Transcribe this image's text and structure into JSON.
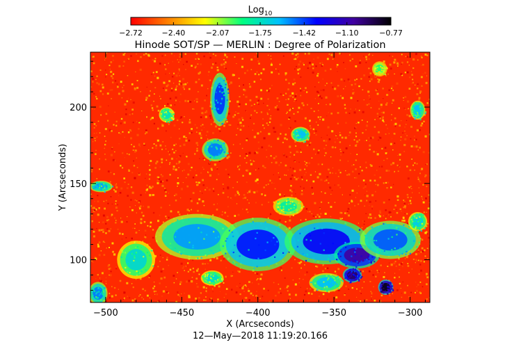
{
  "chart_data": {
    "type": "heatmap",
    "title": "Hinode SOT/SP — MERLIN : Degree of Polarization",
    "xlabel": "X (Arcseconds)",
    "ylabel": "Y (Arcseconds)",
    "xlim": [
      -510,
      -287
    ],
    "ylim": [
      72,
      236
    ],
    "x_ticks": [
      -500,
      -450,
      -400,
      -350,
      -300
    ],
    "x_tick_labels": [
      "−500",
      "−450",
      "−400",
      "−350",
      "−300"
    ],
    "y_ticks": [
      100,
      150,
      200
    ],
    "y_tick_labels": [
      "100",
      "150",
      "200"
    ],
    "colorbar": {
      "label_main": "Log",
      "label_sub": "10",
      "range": [
        -2.72,
        -0.77
      ],
      "tick_values": [
        -2.72,
        -2.4,
        -2.07,
        -1.75,
        -1.42,
        -1.1,
        -0.77
      ],
      "tick_labels": [
        "−2.72",
        "−2.40",
        "−2.07",
        "−1.75",
        "−1.42",
        "−1.10",
        "−0.77"
      ],
      "colors": [
        "#ff0000",
        "#ff8000",
        "#ffff00",
        "#00ff80",
        "#00c0ff",
        "#0000ff",
        "#4000a0",
        "#000000"
      ]
    },
    "timestamp": "12—May—2018 11:19:20.166",
    "regions": [
      {
        "x": -440,
        "y": 115,
        "rx": 22,
        "ry": 12,
        "level": -1.55
      },
      {
        "x": -400,
        "y": 110,
        "rx": 20,
        "ry": 14,
        "level": -1.35
      },
      {
        "x": -355,
        "y": 112,
        "rx": 22,
        "ry": 12,
        "level": -1.3
      },
      {
        "x": -335,
        "y": 103,
        "rx": 12,
        "ry": 7,
        "level": -1.05
      },
      {
        "x": -313,
        "y": 113,
        "rx": 16,
        "ry": 10,
        "level": -1.45
      },
      {
        "x": -338,
        "y": 90,
        "rx": 5,
        "ry": 4,
        "level": -0.95
      },
      {
        "x": -316,
        "y": 82,
        "rx": 4,
        "ry": 4,
        "level": -0.8
      },
      {
        "x": -355,
        "y": 85,
        "rx": 9,
        "ry": 5,
        "level": -1.6
      },
      {
        "x": -425,
        "y": 205,
        "rx": 5,
        "ry": 14,
        "level": -1.4
      },
      {
        "x": -428,
        "y": 172,
        "rx": 7,
        "ry": 6,
        "level": -1.5
      },
      {
        "x": -503,
        "y": 148,
        "rx": 6,
        "ry": 3,
        "level": -1.55
      },
      {
        "x": -460,
        "y": 195,
        "rx": 4,
        "ry": 4,
        "level": -1.75
      },
      {
        "x": -372,
        "y": 182,
        "rx": 5,
        "ry": 4,
        "level": -1.6
      },
      {
        "x": -295,
        "y": 198,
        "rx": 4,
        "ry": 5,
        "level": -1.6
      },
      {
        "x": -480,
        "y": 100,
        "rx": 10,
        "ry": 10,
        "level": -1.7
      },
      {
        "x": -505,
        "y": 78,
        "rx": 5,
        "ry": 6,
        "level": -1.5
      },
      {
        "x": -295,
        "y": 125,
        "rx": 5,
        "ry": 5,
        "level": -1.65
      },
      {
        "x": -430,
        "y": 88,
        "rx": 6,
        "ry": 4,
        "level": -1.7
      },
      {
        "x": -380,
        "y": 135,
        "rx": 8,
        "ry": 5,
        "level": -1.8
      },
      {
        "x": -320,
        "y": 225,
        "rx": 4,
        "ry": 4,
        "level": -1.9
      }
    ]
  }
}
